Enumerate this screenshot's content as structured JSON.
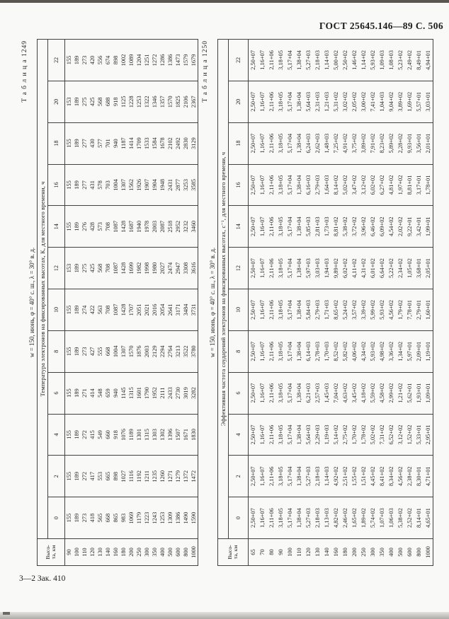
{
  "page": {
    "header_right": "ГОСТ 25645.146—89  С. 506",
    "footer_note": "3—2 Зак. 410"
  },
  "tables": [
    {
      "label": "Т а б л и ц а  1249",
      "title": "w = 150, июнь, φ = 40° с. ш., λ = 30° в. д.",
      "caption": "Температура электронов на фиксированных высотах, К, для местного времени, ч",
      "height_header": [
        "Высо-",
        "та, км"
      ],
      "times": [
        "0",
        "2",
        "4",
        "6",
        "8",
        "10",
        "12",
        "14",
        "16",
        "18",
        "20",
        "22"
      ],
      "heights": [
        "90",
        "100",
        "110",
        "120",
        "130",
        "140",
        "160",
        "180",
        "200",
        "250",
        "300",
        "350",
        "400",
        "500",
        "600",
        "800",
        "1000"
      ],
      "values": [
        [
          "155",
          "155",
          "155",
          "155",
          "155",
          "155",
          "153",
          "155",
          "155",
          "155",
          "153",
          "155"
        ],
        [
          "189",
          "189",
          "189",
          "189",
          "189",
          "189",
          "189",
          "189",
          "189",
          "189",
          "189",
          "189"
        ],
        [
          "273",
          "272",
          "272",
          "271",
          "273",
          "274",
          "275",
          "276",
          "277",
          "277",
          "275",
          "273"
        ],
        [
          "418",
          "417",
          "415",
          "414",
          "427",
          "422",
          "425",
          "428",
          "431",
          "430",
          "425",
          "420"
        ],
        [
          "565",
          "553",
          "549",
          "548",
          "555",
          "563",
          "568",
          "573",
          "578",
          "577",
          "568",
          "556"
        ],
        [
          "668",
          "665",
          "660",
          "659",
          "668",
          "708",
          "708",
          "708",
          "703",
          "701",
          "688",
          "674"
        ],
        [
          "865",
          "898",
          "918",
          "940",
          "1004",
          "1087",
          "1087",
          "1087",
          "1004",
          "940",
          "918",
          "898"
        ],
        [
          "983",
          "1027",
          "1076",
          "1145",
          "1307",
          "1428",
          "1428",
          "1428",
          "1307",
          "1187",
          "1125",
          "1002"
        ],
        [
          "1069",
          "1116",
          "1189",
          "1315",
          "1570",
          "1707",
          "1699",
          "1687",
          "1562",
          "1414",
          "1228",
          "1089"
        ],
        [
          "1179",
          "1192",
          "1301",
          "1601",
          "1876",
          "2051",
          "1982",
          "1940",
          "1926",
          "1709",
          "1253",
          "1204"
        ],
        [
          "1223",
          "1211",
          "1315",
          "1790",
          "2003",
          "2021",
          "1998",
          "1978",
          "1907",
          "1533",
          "1322",
          "1251"
        ],
        [
          "1243",
          "1235",
          "1303",
          "1952",
          "2129",
          "2016",
          "1980",
          "2003",
          "1904",
          "1584",
          "1346",
          "1272"
        ],
        [
          "1253",
          "1260",
          "1302",
          "2111",
          "2294",
          "2054",
          "2027",
          "2087",
          "1948",
          "1678",
          "1357",
          "1286"
        ],
        [
          "1309",
          "1271",
          "1396",
          "2433",
          "2764",
          "2641",
          "2474",
          "2518",
          "2431",
          "2102",
          "1570",
          "1386"
        ],
        [
          "1386",
          "1279",
          "1507",
          "2730",
          "3213",
          "3171",
          "2947",
          "2952",
          "2877",
          "2492",
          "1825",
          "1473"
        ],
        [
          "1490",
          "1372",
          "1671",
          "3019",
          "3522",
          "3484",
          "3308",
          "3232",
          "3253",
          "2830",
          "2106",
          "1579"
        ],
        [
          "1590",
          "1472",
          "1830",
          "3282",
          "3780",
          "3731",
          "3616",
          "3460",
          "3585",
          "3129",
          "2367",
          "1679"
        ]
      ]
    },
    {
      "label": "Т а б л и ц а  1250",
      "title": "w = 150, июнь, φ = 40° с. ш., λ = 30° в. д.",
      "caption": "Эффективная частота соударений электронов на фиксированных высотах, с⁻¹, для местного времени, ч",
      "height_header": [
        "Высо-",
        "та, км"
      ],
      "times": [
        "0",
        "2",
        "4",
        "6",
        "8",
        "10",
        "12",
        "14",
        "16",
        "18",
        "20",
        "22"
      ],
      "heights": [
        "65",
        "70",
        "80",
        "90",
        "100",
        "110",
        "120",
        "130",
        "140",
        "160",
        "180",
        "200",
        "250",
        "300",
        "350",
        "400",
        "500",
        "600",
        "800",
        "1000"
      ],
      "values": [
        [
          "2,50+07",
          "2,50+07",
          "2,50+07",
          "2,50+07",
          "2,50+07",
          "2,50+07",
          "2,50+07",
          "2,50+07",
          "2,50+07",
          "2,50+07",
          "2,50+07",
          "2,50+07"
        ],
        [
          "1,16+07",
          "1,16+07",
          "1,16+07",
          "1,16+07",
          "1,16+07",
          "1,16+07",
          "1,16+07",
          "1,16+07",
          "1,16+07",
          "1,16+07",
          "1,16+07",
          "1,16+07"
        ],
        [
          "2,11+06",
          "2,11+06",
          "2,11+06",
          "2,11+06",
          "2,11+06",
          "2,11+06",
          "2,11+06",
          "2,11+06",
          "2,11+06",
          "2,11+06",
          "2,11+06",
          "2,11+06"
        ],
        [
          "3,18+05",
          "3,18+05",
          "3,18+05",
          "3,18+05",
          "3,18+05",
          "3,18+05",
          "3,18+05",
          "3,18+05",
          "3,18+05",
          "3,18+05",
          "3,18+05",
          "3,18+05"
        ],
        [
          "5,17+04",
          "5,17+04",
          "5,17+04",
          "5,17+04",
          "5,17+04",
          "5,17+04",
          "5,17+04",
          "5,17+04",
          "5,17+04",
          "5,17+04",
          "5,17+04",
          "5,17+04"
        ],
        [
          "1,38+04",
          "1,38+04",
          "1,38+04",
          "1,38+04",
          "1,38+04",
          "1,38+04",
          "1,38+04",
          "1,38+04",
          "1,38+04",
          "1,38+04",
          "1,38+04",
          "1,38+04"
        ],
        [
          "5,27+03",
          "5,27+03",
          "5,64+03",
          "6,21+03",
          "6,14+03",
          "5,84+03",
          "5,97+03",
          "5,85+03",
          "6,16+03",
          "6,24+03",
          "5,64+03",
          "5,27+03"
        ],
        [
          "2,18+03",
          "2,18+03",
          "2,29+03",
          "2,57+03",
          "2,78+03",
          "2,79+03",
          "3,03+03",
          "2,81+03",
          "2,79+03",
          "2,62+03",
          "2,31+03",
          "2,18+03"
        ],
        [
          "1,13+03",
          "1,14+03",
          "1,19+03",
          "1,45+03",
          "1,70+03",
          "1,71+03",
          "1,94+03",
          "1,73+03",
          "1,64+03",
          "1,48+03",
          "1,21+03",
          "1,14+03"
        ],
        [
          "4,82+02",
          "4,92+02",
          "5,14+02",
          "7,04+02",
          "8,52+02",
          "8,65+02",
          "9,89+02",
          "8,81+02",
          "8,14+02",
          "7,25+02",
          "5,31+02",
          "5,00+02"
        ],
        [
          "2,46+02",
          "2,51+02",
          "2,75+02",
          "4,63+02",
          "5,82+02",
          "5,24+02",
          "6,02+02",
          "5,38+02",
          "5,02+02",
          "4,91+02",
          "3,02+02",
          "2,50+02"
        ],
        [
          "1,65+02",
          "1,55+02",
          "1,70+02",
          "3,45+02",
          "4,06+02",
          "3,57+02",
          "4,11+02",
          "3,72+02",
          "3,47+02",
          "3,75+02",
          "2,05+02",
          "1,46+02"
        ],
        [
          "1,89+02",
          "1,51+02",
          "1,78+02",
          "4,18+02",
          "4,34+02",
          "3,39+02",
          "4,31+02",
          "3,96+02",
          "3,12+02",
          "3,89+02",
          "3,00+02",
          "1,14+02"
        ],
        [
          "5,74+02",
          "4,45+02",
          "5,02+02",
          "5,59+02",
          "5,93+02",
          "5,99+02",
          "6,01+02",
          "6,46+02",
          "6,02+02",
          "7,91+02",
          "7,41+02",
          "5,93+02"
        ],
        [
          "1,07+03",
          "8,41+02",
          "7,31+02",
          "4,58+02",
          "4,98+02",
          "5,93+02",
          "6,64+02",
          "6,09+02",
          "6,27+02",
          "8,23+02",
          "1,04+03",
          "1,09+03"
        ],
        [
          "1,06+03",
          "8,34+02",
          "6,52+02",
          "2,99+02",
          "3,36+02",
          "4,56+02",
          "5,22+02",
          "4,54+02",
          "4,81+02",
          "5,89+02",
          "9,04+02",
          "1,08+03"
        ],
        [
          "5,38+02",
          "4,56+02",
          "3,12+02",
          "1,21+02",
          "1,34+02",
          "1,79+02",
          "2,34+02",
          "2,02+02",
          "1,97+02",
          "2,28+02",
          "3,89+02",
          "5,23+02"
        ],
        [
          "2,52+02",
          "2,38+02",
          "1,52+02",
          "5,62+01",
          "5,97+01",
          "7,78+01",
          "1,05+02",
          "9,22+01",
          "8,81+01",
          "9,93+01",
          "1,69+02",
          "2,49+02"
        ],
        [
          "8,14+01",
          "8,30+01",
          "5,33+01",
          "1,93+01",
          "2,09+01",
          "2,79+01",
          "3,68+01",
          "3,42+01",
          "3,17+01",
          "3,56+01",
          "5,57+01",
          "8,49+01"
        ],
        [
          "4,65+01",
          "4,71+01",
          "2,95+01",
          "1,09+01",
          "1,19+01",
          "1,60+01",
          "2,05+01",
          "1,99+01",
          "1,78+01",
          "2,01+01",
          "3,03+01",
          "4,94+01"
        ]
      ]
    }
  ]
}
